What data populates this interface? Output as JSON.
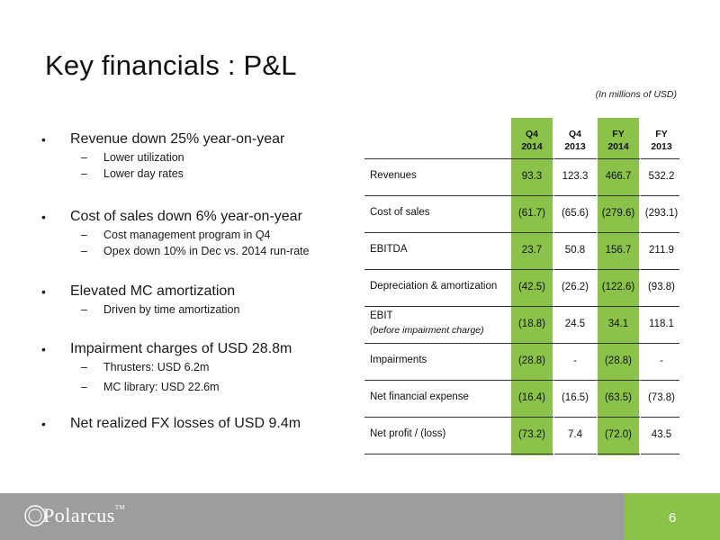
{
  "title": "Key financials : P&L",
  "subtitle": "(In millions of USD)",
  "bullets": [
    {
      "text": "Revenue down 25% year-on-year",
      "subs": [
        "Lower utilization",
        "Lower day rates"
      ]
    },
    {
      "text": "Cost of sales down 6% year-on-year",
      "subs": [
        "Cost management program in Q4",
        "Opex down 10% in Dec vs. 2014 run-rate"
      ]
    },
    {
      "text": "Elevated MC amortization",
      "subs": [
        "Driven by time amortization"
      ]
    },
    {
      "text": "Impairment charges of USD 28.8m",
      "subs": [
        "Thrusters: USD 6.2m",
        "MC library: USD 22.6m"
      ]
    },
    {
      "text": "Net realized FX losses of USD 9.4m",
      "subs": []
    }
  ],
  "bullet_glyph": "•",
  "sub_glyph": "–",
  "table": {
    "headers": [
      {
        "line1": "Q4",
        "line2": "2014"
      },
      {
        "line1": "Q4",
        "line2": "2013"
      },
      {
        "line1": "FY",
        "line2": "2014"
      },
      {
        "line1": "FY",
        "line2": "2013"
      }
    ],
    "rows": [
      {
        "label": "Revenues",
        "sublabel": "",
        "values": [
          "93.3",
          "123.3",
          "466.7",
          "532.2"
        ]
      },
      {
        "label": "Cost of sales",
        "sublabel": "",
        "values": [
          "(61.7)",
          "(65.6)",
          "(279.6)",
          "(293.1)"
        ]
      },
      {
        "label": "EBITDA",
        "sublabel": "",
        "values": [
          "23.7",
          "50.8",
          "156.7",
          "211.9"
        ]
      },
      {
        "label": "Depreciation & amortization",
        "sublabel": "",
        "values": [
          "(42.5)",
          "(26.2)",
          "(122.6)",
          "(93.8)"
        ]
      },
      {
        "label": "EBIT",
        "sublabel": "(before impairment charge)",
        "values": [
          "(18.8)",
          "24.5",
          "34.1",
          "118.1"
        ]
      },
      {
        "label": "Impairments",
        "sublabel": "",
        "values": [
          "(28.8)",
          "-",
          "(28.8)",
          "-"
        ]
      },
      {
        "label": "Net financial expense",
        "sublabel": "",
        "values": [
          "(16.4)",
          "(16.5)",
          "(63.5)",
          "(73.8)"
        ]
      },
      {
        "label": "Net profit / (loss)",
        "sublabel": "",
        "values": [
          "(73.2)",
          "7.4",
          "(72.0)",
          "43.5"
        ]
      }
    ],
    "highlight_color": "#8bc34a"
  },
  "footer": {
    "logo_text": "Polarcus",
    "trademark": "TM",
    "page_number": "6",
    "footer_color": "#9d9d9d",
    "page_color": "#8bc34a"
  }
}
